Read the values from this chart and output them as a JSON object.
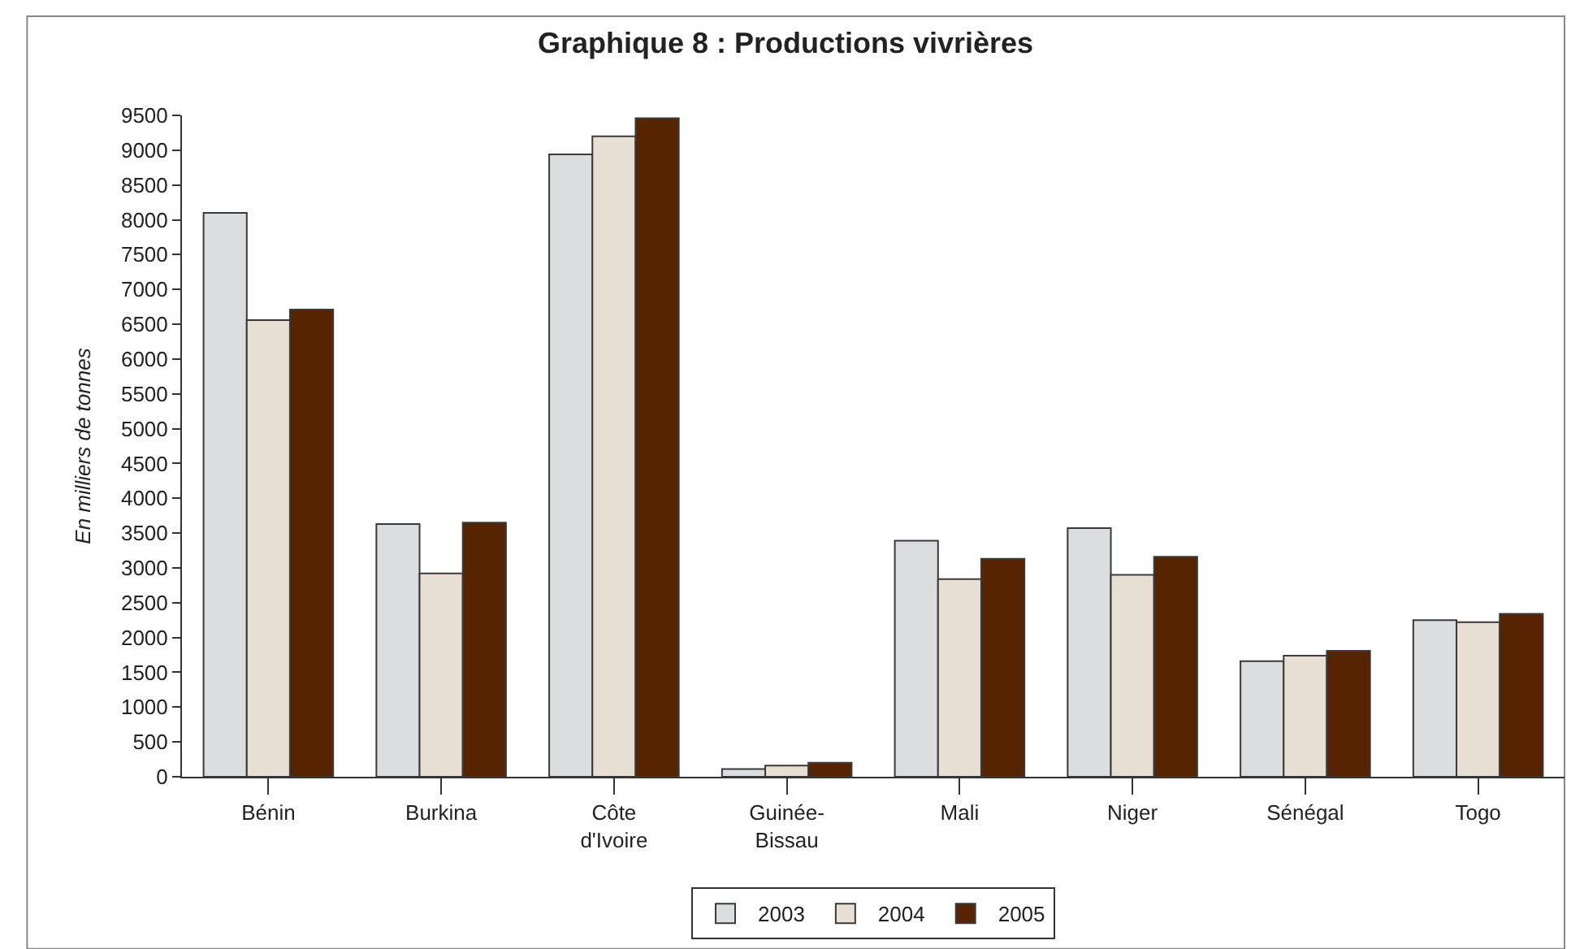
{
  "chart_data": {
    "type": "bar",
    "title": "Graphique 8 : Productions vivrières",
    "ylabel": "En milliers de tonnes",
    "categories": [
      "Bénin",
      "Burkina",
      "Côte d'Ivoire",
      "Guinée-Bissau",
      "Mali",
      "Niger",
      "Sénégal",
      "Togo"
    ],
    "series": [
      {
        "name": "2003",
        "color": "#dcdddf",
        "values": [
          8100,
          3630,
          8940,
          110,
          3390,
          3570,
          1660,
          2250
        ]
      },
      {
        "name": "2004",
        "color": "#e8dfd4",
        "values": [
          6560,
          2920,
          9200,
          160,
          2840,
          2900,
          1740,
          2220
        ]
      },
      {
        "name": "2005",
        "color": "#562400",
        "values": [
          6710,
          3650,
          9460,
          200,
          3130,
          3160,
          1810,
          2340
        ]
      }
    ],
    "ylim": [
      0,
      9500
    ],
    "yticks": [
      0,
      500,
      1000,
      1500,
      2000,
      2500,
      3000,
      3500,
      4000,
      4500,
      5000,
      5500,
      6000,
      6500,
      7000,
      7500,
      8000,
      8500,
      9000,
      9500
    ],
    "grid": false,
    "legend": "bottom"
  }
}
